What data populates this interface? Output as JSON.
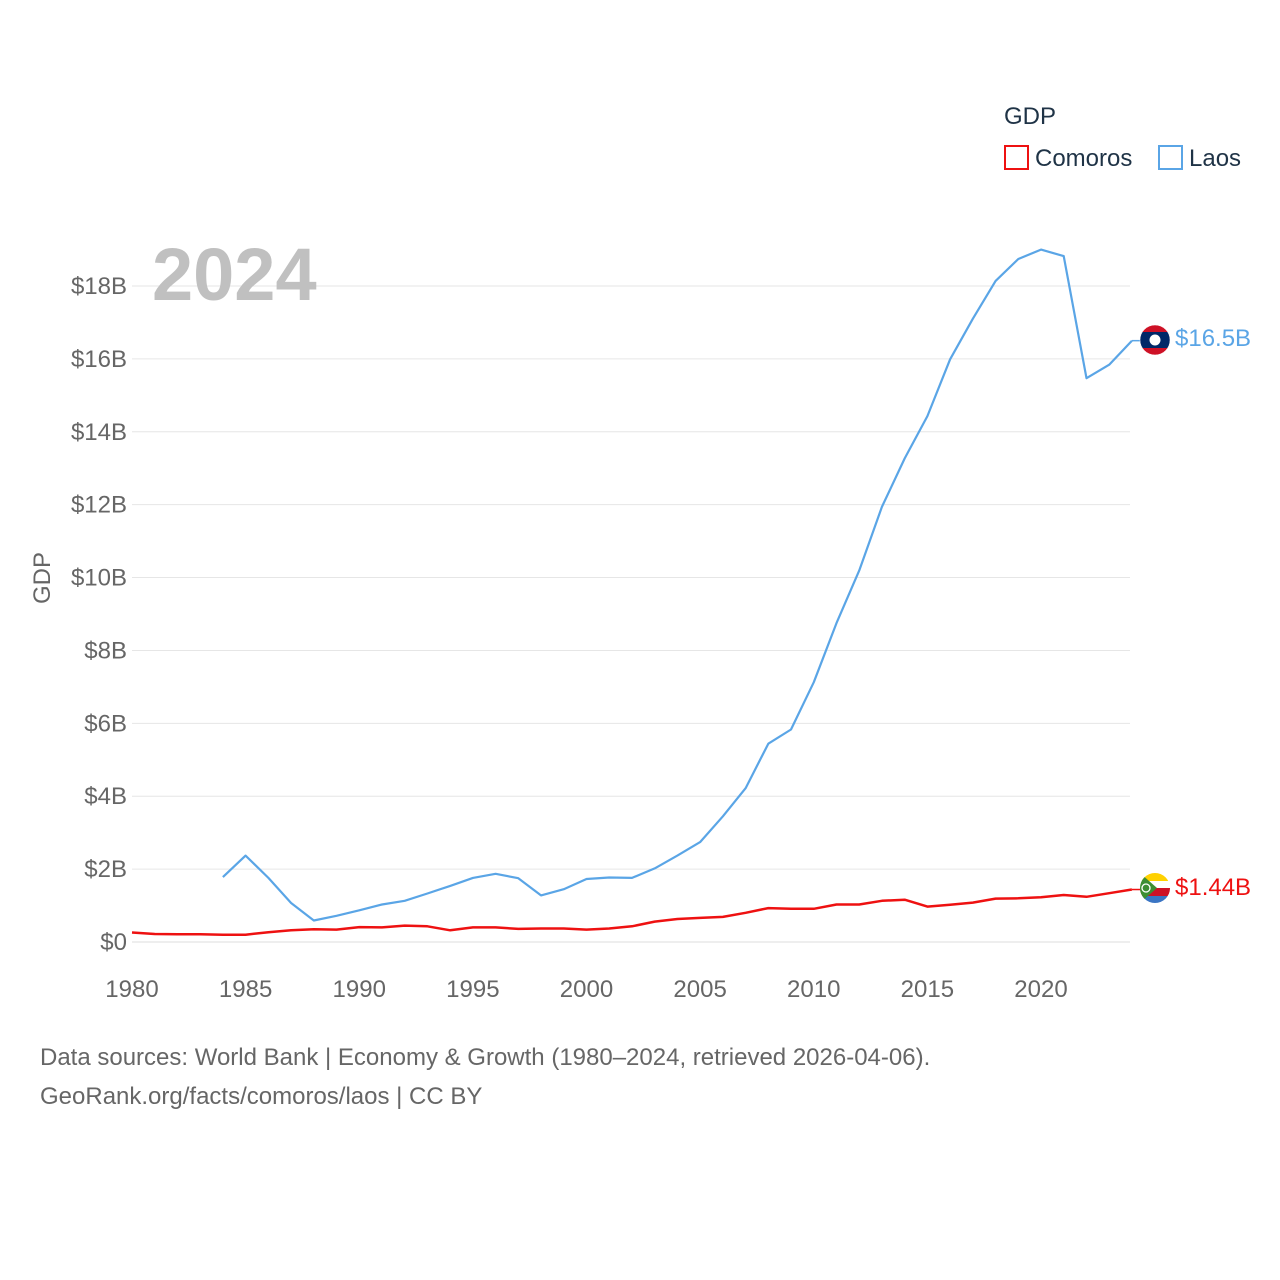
{
  "chart_data": {
    "type": "line",
    "year_label": "2024",
    "ylabel": "GDP",
    "legend": {
      "title": "GDP",
      "position": "top-right"
    },
    "xlim": [
      1980,
      2024
    ],
    "ylim": [
      0,
      20
    ],
    "x_ticks": [
      {
        "value": 1980,
        "label": "1980"
      },
      {
        "value": 1985,
        "label": "1985"
      },
      {
        "value": 1990,
        "label": "1990"
      },
      {
        "value": 1995,
        "label": "1995"
      },
      {
        "value": 2000,
        "label": "2000"
      },
      {
        "value": 2005,
        "label": "2005"
      },
      {
        "value": 2010,
        "label": "2010"
      },
      {
        "value": 2015,
        "label": "2015"
      },
      {
        "value": 2020,
        "label": "2020"
      }
    ],
    "y_ticks": [
      {
        "value": 0,
        "label": "$0"
      },
      {
        "value": 2,
        "label": "$2B"
      },
      {
        "value": 4,
        "label": "$4B"
      },
      {
        "value": 6,
        "label": "$6B"
      },
      {
        "value": 8,
        "label": "$8B"
      },
      {
        "value": 10,
        "label": "$10B"
      },
      {
        "value": 12,
        "label": "$12B"
      },
      {
        "value": 14,
        "label": "$14B"
      },
      {
        "value": 16,
        "label": "$16B"
      },
      {
        "value": 18,
        "label": "$18B"
      }
    ],
    "grid": true,
    "series": [
      {
        "name": "Comoros",
        "color": "#ee1111",
        "end_label": "$1.44B",
        "flag_icon": "comoros-flag-icon",
        "x": [
          1980,
          1981,
          1982,
          1983,
          1984,
          1985,
          1986,
          1987,
          1988,
          1989,
          1990,
          1991,
          1992,
          1993,
          1994,
          1995,
          1996,
          1997,
          1998,
          1999,
          2000,
          2001,
          2002,
          2003,
          2004,
          2005,
          2006,
          2007,
          2008,
          2009,
          2010,
          2011,
          2012,
          2013,
          2014,
          2015,
          2016,
          2017,
          2018,
          2019,
          2020,
          2021,
          2022,
          2023,
          2024
        ],
        "values": [
          0.26,
          0.22,
          0.21,
          0.21,
          0.2,
          0.2,
          0.27,
          0.32,
          0.35,
          0.34,
          0.41,
          0.4,
          0.45,
          0.43,
          0.32,
          0.4,
          0.4,
          0.36,
          0.37,
          0.37,
          0.34,
          0.37,
          0.43,
          0.56,
          0.63,
          0.66,
          0.69,
          0.8,
          0.93,
          0.91,
          0.91,
          1.03,
          1.03,
          1.13,
          1.16,
          0.97,
          1.02,
          1.08,
          1.19,
          1.2,
          1.23,
          1.29,
          1.24,
          1.34,
          1.44
        ]
      },
      {
        "name": "Laos",
        "color": "#5aa5e6",
        "end_label": "$16.5B",
        "flag_icon": "laos-flag-icon",
        "x": [
          1984,
          1985,
          1986,
          1987,
          1988,
          1989,
          1990,
          1991,
          1992,
          1993,
          1994,
          1995,
          1996,
          1997,
          1998,
          1999,
          2000,
          2001,
          2002,
          2003,
          2004,
          2005,
          2006,
          2007,
          2008,
          2009,
          2010,
          2011,
          2012,
          2013,
          2014,
          2015,
          2016,
          2017,
          2018,
          2019,
          2020,
          2021,
          2022,
          2023,
          2024
        ],
        "values": [
          1.78,
          2.37,
          1.76,
          1.07,
          0.59,
          0.72,
          0.87,
          1.03,
          1.13,
          1.33,
          1.54,
          1.76,
          1.87,
          1.75,
          1.28,
          1.45,
          1.73,
          1.77,
          1.76,
          2.02,
          2.37,
          2.74,
          3.45,
          4.22,
          5.44,
          5.83,
          7.13,
          8.75,
          10.19,
          11.94,
          13.27,
          14.43,
          15.99,
          17.1,
          18.14,
          18.74,
          19.0,
          18.82,
          15.47,
          15.84,
          16.5
        ]
      }
    ]
  },
  "footer": {
    "line1": "Data sources: World Bank | Economy & Growth (1980–2024, retrieved 2026-04-06).",
    "line2": "GeoRank.org/facts/comoros/laos | CC BY"
  }
}
